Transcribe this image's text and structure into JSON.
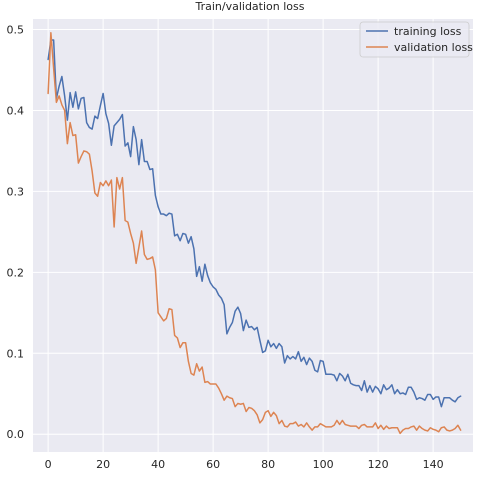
{
  "chart_data": {
    "type": "line",
    "title": "Train/validation loss",
    "xlabel": "",
    "ylabel": "",
    "xlim": [
      -5.5,
      154.5
    ],
    "ylim": [
      -0.022,
      0.513
    ],
    "x_ticks": [
      0,
      20,
      40,
      60,
      80,
      100,
      120,
      140
    ],
    "y_ticks": [
      0.0,
      0.1,
      0.2,
      0.3,
      0.4,
      0.5
    ],
    "x_tick_labels": [
      "0",
      "20",
      "40",
      "60",
      "80",
      "100",
      "120",
      "140"
    ],
    "y_tick_labels": [
      "0.0",
      "0.1",
      "0.2",
      "0.3",
      "0.4",
      "0.5"
    ],
    "grid": true,
    "legend_position": "top-right",
    "series": [
      {
        "name": "training loss",
        "color": "#4c72b0",
        "values": [
          0.463,
          0.487,
          0.487,
          0.415,
          0.43,
          0.442,
          0.418,
          0.388,
          0.422,
          0.404,
          0.423,
          0.402,
          0.415,
          0.416,
          0.385,
          0.379,
          0.377,
          0.393,
          0.39,
          0.406,
          0.421,
          0.396,
          0.384,
          0.357,
          0.381,
          0.385,
          0.389,
          0.395,
          0.356,
          0.36,
          0.343,
          0.38,
          0.364,
          0.333,
          0.364,
          0.337,
          0.337,
          0.327,
          0.328,
          0.295,
          0.281,
          0.272,
          0.272,
          0.27,
          0.273,
          0.272,
          0.245,
          0.247,
          0.239,
          0.248,
          0.247,
          0.236,
          0.244,
          0.229,
          0.195,
          0.207,
          0.189,
          0.21,
          0.196,
          0.187,
          0.182,
          0.179,
          0.172,
          0.168,
          0.16,
          0.124,
          0.132,
          0.138,
          0.152,
          0.157,
          0.149,
          0.128,
          0.141,
          0.132,
          0.133,
          0.129,
          0.132,
          0.116,
          0.101,
          0.103,
          0.116,
          0.108,
          0.112,
          0.106,
          0.112,
          0.108,
          0.088,
          0.097,
          0.093,
          0.096,
          0.093,
          0.102,
          0.09,
          0.095,
          0.086,
          0.094,
          0.09,
          0.079,
          0.077,
          0.091,
          0.09,
          0.074,
          0.074,
          0.074,
          0.073,
          0.066,
          0.075,
          0.072,
          0.066,
          0.074,
          0.063,
          0.061,
          0.06,
          0.06,
          0.054,
          0.066,
          0.052,
          0.06,
          0.052,
          0.059,
          0.056,
          0.05,
          0.061,
          0.055,
          0.057,
          0.061,
          0.05,
          0.055,
          0.05,
          0.051,
          0.049,
          0.058,
          0.058,
          0.052,
          0.043,
          0.045,
          0.044,
          0.042,
          0.049,
          0.049,
          0.043,
          0.046,
          0.046,
          0.034,
          0.045,
          0.045,
          0.045,
          0.042,
          0.04,
          0.045,
          0.047
        ]
      },
      {
        "name": "validation loss",
        "color": "#dd8452",
        "values": [
          0.421,
          0.496,
          0.452,
          0.41,
          0.418,
          0.407,
          0.4,
          0.359,
          0.385,
          0.369,
          0.37,
          0.335,
          0.343,
          0.35,
          0.349,
          0.346,
          0.325,
          0.298,
          0.294,
          0.311,
          0.307,
          0.313,
          0.307,
          0.314,
          0.256,
          0.317,
          0.303,
          0.317,
          0.264,
          0.262,
          0.248,
          0.236,
          0.211,
          0.231,
          0.251,
          0.222,
          0.216,
          0.217,
          0.219,
          0.203,
          0.15,
          0.145,
          0.14,
          0.143,
          0.155,
          0.154,
          0.122,
          0.119,
          0.107,
          0.113,
          0.113,
          0.09,
          0.075,
          0.073,
          0.087,
          0.078,
          0.083,
          0.064,
          0.065,
          0.062,
          0.062,
          0.062,
          0.057,
          0.05,
          0.042,
          0.047,
          0.045,
          0.044,
          0.034,
          0.038,
          0.037,
          0.038,
          0.028,
          0.033,
          0.032,
          0.029,
          0.024,
          0.014,
          0.018,
          0.027,
          0.029,
          0.022,
          0.027,
          0.023,
          0.013,
          0.017,
          0.01,
          0.009,
          0.013,
          0.013,
          0.015,
          0.01,
          0.012,
          0.009,
          0.014,
          0.009,
          0.005,
          0.009,
          0.009,
          0.013,
          0.011,
          0.009,
          0.009,
          0.009,
          0.011,
          0.017,
          0.012,
          0.017,
          0.012,
          0.011,
          0.01,
          0.01,
          0.01,
          0.007,
          0.011,
          0.012,
          0.009,
          0.009,
          0.009,
          0.014,
          0.007,
          0.011,
          0.006,
          0.01,
          0.007,
          0.008,
          0.008,
          0.008,
          0.001,
          0.005,
          0.007,
          0.007,
          0.009,
          0.01,
          0.005,
          0.01,
          0.007,
          0.005,
          0.004,
          0.008,
          0.006,
          0.005,
          0.003,
          0.008,
          0.009,
          0.005,
          0.004,
          0.005,
          0.007,
          0.011,
          0.005
        ]
      }
    ]
  }
}
